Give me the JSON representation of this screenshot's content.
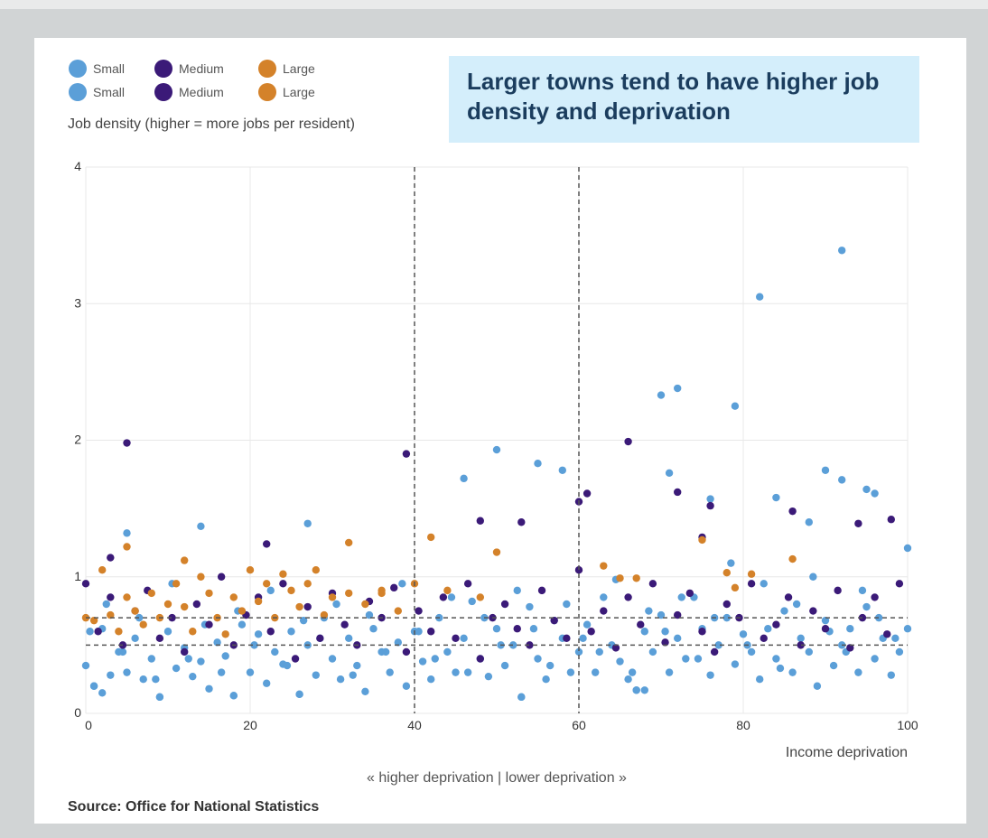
{
  "chart_data": {
    "type": "scatter",
    "title": "Larger towns tend to have higher job density and deprivation",
    "y_label": "Job density (higher = more jobs per resident)",
    "x_label": "Income deprivation",
    "annotation": "« higher deprivation | lower deprivation »",
    "source": "Source: Office for National Statistics",
    "xlim": [
      0,
      100
    ],
    "xticks": [
      0,
      20,
      40,
      60,
      80,
      100
    ],
    "ylim": [
      0,
      4
    ],
    "yticks": [
      0,
      1,
      2,
      3,
      4
    ],
    "grid": true,
    "reference_lines": {
      "x": [
        40,
        60
      ],
      "y": [
        0.5,
        0.7
      ]
    },
    "series": [
      {
        "name": "Small",
        "color": "#5b9fd8",
        "x": [
          0,
          1,
          2,
          3,
          4,
          5,
          6,
          7,
          8,
          9,
          10,
          11,
          12,
          13,
          14,
          15,
          16,
          17,
          18,
          19,
          20,
          21,
          22,
          23,
          24,
          25,
          26,
          27,
          28,
          29,
          30,
          31,
          32,
          33,
          34,
          35,
          36,
          37,
          38,
          39,
          40,
          41,
          42,
          43,
          44,
          45,
          46,
          47,
          48,
          49,
          50,
          51,
          52,
          53,
          54,
          55,
          56,
          57,
          58,
          59,
          60,
          61,
          62,
          63,
          64,
          65,
          66,
          67,
          68,
          69,
          70,
          71,
          72,
          73,
          74,
          75,
          76,
          77,
          78,
          79,
          80,
          81,
          82,
          83,
          84,
          85,
          86,
          87,
          88,
          89,
          90,
          91,
          92,
          93,
          94,
          95,
          96,
          97,
          98,
          99,
          100,
          0.5,
          2.5,
          4.5,
          6.5,
          8.5,
          10.5,
          12.5,
          14.5,
          16.5,
          18.5,
          20.5,
          22.5,
          24.5,
          26.5,
          28.5,
          30.5,
          32.5,
          34.5,
          36.5,
          38.5,
          40.5,
          42.5,
          44.5,
          46.5,
          48.5,
          50.5,
          52.5,
          54.5,
          56.5,
          58.5,
          60.5,
          62.5,
          64.5,
          66.5,
          68.5,
          70.5,
          72.5,
          74.5,
          76.5,
          78.5,
          80.5,
          82.5,
          84.5,
          86.5,
          88.5,
          90.5,
          92.5,
          94.5,
          96.5,
          98.5,
          5,
          14,
          27,
          50,
          55,
          58,
          46,
          70,
          72,
          79,
          82,
          92,
          71,
          90,
          92,
          95,
          96,
          76,
          84,
          88,
          100,
          1,
          2,
          9,
          18,
          26,
          53,
          67,
          68
        ],
        "values": [
          0.35,
          0.2,
          0.62,
          0.28,
          0.45,
          0.3,
          0.55,
          0.25,
          0.4,
          0.12,
          0.6,
          0.33,
          0.48,
          0.27,
          0.38,
          0.18,
          0.52,
          0.42,
          0.13,
          0.65,
          0.3,
          0.58,
          0.22,
          0.45,
          0.36,
          0.6,
          0.14,
          0.5,
          0.28,
          0.7,
          0.4,
          0.25,
          0.55,
          0.35,
          0.16,
          0.62,
          0.45,
          0.3,
          0.52,
          0.2,
          0.6,
          0.38,
          0.25,
          0.7,
          0.45,
          0.3,
          0.55,
          0.82,
          0.4,
          0.27,
          0.62,
          0.35,
          0.5,
          0.12,
          0.78,
          0.4,
          0.25,
          0.68,
          0.55,
          0.3,
          0.45,
          0.65,
          0.3,
          0.85,
          0.5,
          0.38,
          0.25,
          0.17,
          0.6,
          0.45,
          0.72,
          0.3,
          0.55,
          0.4,
          0.85,
          0.62,
          0.28,
          0.5,
          0.7,
          0.36,
          0.58,
          0.45,
          0.25,
          0.62,
          0.4,
          0.75,
          0.3,
          0.55,
          0.45,
          0.2,
          0.68,
          0.35,
          0.5,
          0.62,
          0.3,
          0.78,
          0.4,
          0.55,
          0.28,
          0.45,
          0.62,
          0.6,
          0.8,
          0.45,
          0.7,
          0.25,
          0.95,
          0.4,
          0.65,
          0.3,
          0.75,
          0.5,
          0.9,
          0.35,
          0.68,
          0.55,
          0.8,
          0.28,
          0.72,
          0.45,
          0.95,
          0.6,
          0.4,
          0.85,
          0.3,
          0.7,
          0.5,
          0.9,
          0.62,
          0.35,
          0.8,
          0.55,
          0.45,
          0.98,
          0.3,
          0.75,
          0.6,
          0.85,
          0.4,
          0.7,
          1.1,
          0.5,
          0.95,
          0.33,
          0.8,
          1.0,
          0.6,
          0.45,
          0.9,
          0.7,
          0.55,
          1.32,
          1.37,
          1.39,
          1.93,
          1.83,
          1.78,
          1.72,
          2.33,
          2.38,
          2.25,
          3.05,
          3.39,
          1.76,
          1.78,
          1.71,
          1.64,
          1.61,
          1.57,
          1.58,
          1.4,
          1.21,
          0.2,
          0.15,
          0.12,
          0.13,
          0.14,
          0.12,
          0.17,
          0.17
        ]
      },
      {
        "name": "Medium",
        "color": "#3b1a78",
        "x": [
          0,
          1.5,
          3,
          4.5,
          6,
          7.5,
          9,
          10.5,
          12,
          13.5,
          15,
          16.5,
          18,
          19.5,
          21,
          22.5,
          24,
          25.5,
          27,
          28.5,
          30,
          31.5,
          33,
          34.5,
          36,
          37.5,
          39,
          40.5,
          42,
          43.5,
          45,
          46.5,
          48,
          49.5,
          51,
          52.5,
          54,
          55.5,
          57,
          58.5,
          60,
          61.5,
          63,
          64.5,
          66,
          67.5,
          69,
          70.5,
          72,
          73.5,
          75,
          76.5,
          78,
          79.5,
          81,
          82.5,
          84,
          85.5,
          87,
          88.5,
          90,
          91.5,
          93,
          94.5,
          96,
          97.5,
          99,
          5,
          39,
          66,
          61,
          72,
          60,
          76,
          86,
          98,
          94,
          75,
          53,
          48,
          3,
          22
        ],
        "values": [
          0.95,
          0.6,
          0.85,
          0.5,
          0.75,
          0.9,
          0.55,
          0.7,
          0.45,
          0.8,
          0.65,
          1.0,
          0.5,
          0.72,
          0.85,
          0.6,
          0.95,
          0.4,
          0.78,
          0.55,
          0.88,
          0.65,
          0.5,
          0.82,
          0.7,
          0.92,
          0.45,
          0.75,
          0.6,
          0.85,
          0.55,
          0.95,
          0.4,
          0.7,
          0.8,
          0.62,
          0.5,
          0.9,
          0.68,
          0.55,
          1.05,
          0.6,
          0.75,
          0.48,
          0.85,
          0.65,
          0.95,
          0.52,
          0.72,
          0.88,
          0.6,
          0.45,
          0.8,
          0.7,
          0.95,
          0.55,
          0.65,
          0.85,
          0.5,
          0.75,
          0.62,
          0.9,
          0.48,
          0.7,
          0.85,
          0.58,
          0.95,
          1.98,
          1.9,
          1.99,
          1.61,
          1.62,
          1.55,
          1.52,
          1.48,
          1.42,
          1.39,
          1.29,
          1.4,
          1.41,
          1.14,
          1.24
        ]
      },
      {
        "name": "Large",
        "color": "#d4822a",
        "x": [
          0,
          1,
          2,
          3,
          4,
          5,
          6,
          7,
          8,
          9,
          10,
          11,
          12,
          13,
          14,
          15,
          16,
          17,
          18,
          19,
          20,
          21,
          22,
          23,
          24,
          25,
          26,
          27,
          28,
          29,
          30,
          32,
          34,
          36,
          38,
          40,
          44,
          48,
          5,
          12,
          32,
          42,
          50,
          75,
          78,
          81,
          86,
          63,
          65,
          67,
          79,
          36
        ],
        "values": [
          0.7,
          0.68,
          1.05,
          0.72,
          0.6,
          0.85,
          0.75,
          0.65,
          0.88,
          0.7,
          0.8,
          0.95,
          0.78,
          0.6,
          1.0,
          0.88,
          0.7,
          0.58,
          0.85,
          0.75,
          1.05,
          0.82,
          0.95,
          0.7,
          1.02,
          0.9,
          0.78,
          0.95,
          1.05,
          0.72,
          0.85,
          0.88,
          0.8,
          0.9,
          0.75,
          0.95,
          0.9,
          0.85,
          1.22,
          1.12,
          1.25,
          1.29,
          1.18,
          1.27,
          1.03,
          1.02,
          1.13,
          1.08,
          0.99,
          0.99,
          0.92,
          0.88
        ]
      }
    ]
  }
}
